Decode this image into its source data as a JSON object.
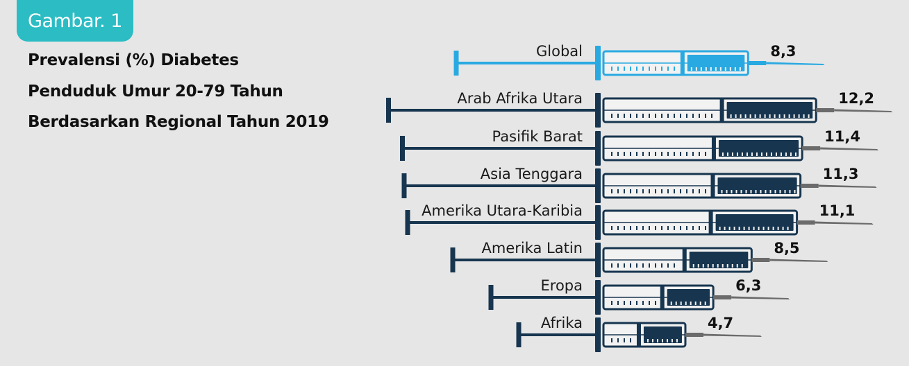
{
  "badge": {
    "label": "Gambar. 1"
  },
  "title": {
    "line1": "Prevalensi (%) Diabetes",
    "line2": "Penduduk Umur 20-79 Tahun",
    "line3": "Berdasarkan Regional Tahun 2019"
  },
  "colors": {
    "background": "#e6e6e6",
    "badge": "#2bbcc4",
    "highlight": "#29a9e1",
    "syringe": "#17354f",
    "needle": "#6b6b6b"
  },
  "chart_data": {
    "type": "bar",
    "orientation": "horizontal",
    "style": "syringe",
    "unit": "%",
    "categories": [
      "Global",
      "Arab Afrika Utara",
      "Pasifik Barat",
      "Asia Tenggara",
      "Amerika Utara-Karibia",
      "Amerika Latin",
      "Eropa",
      "Afrika"
    ],
    "values": [
      8.3,
      12.2,
      11.4,
      11.3,
      11.1,
      8.5,
      6.3,
      4.7
    ],
    "value_labels": [
      "8,3",
      "12,2",
      "11,4",
      "11,3",
      "11,1",
      "8,5",
      "6,3",
      "4,7"
    ],
    "highlight_category": "Global"
  }
}
